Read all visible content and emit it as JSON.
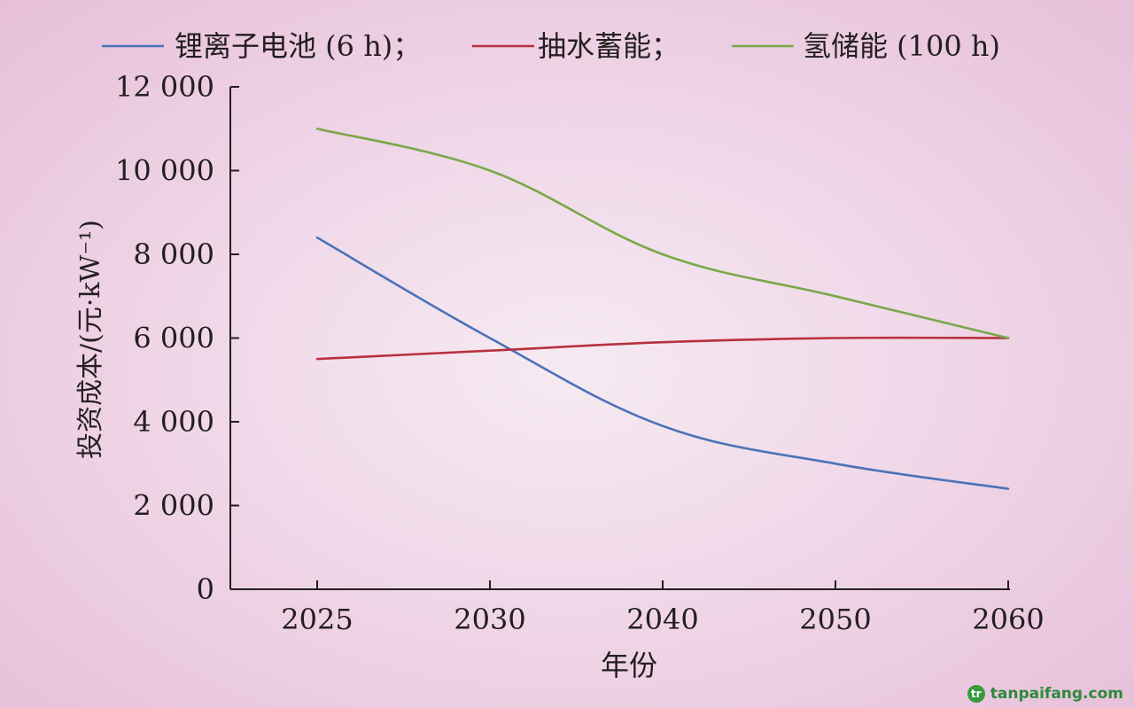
{
  "chart_data": {
    "type": "line",
    "xlabel": "年份",
    "ylabel": "投资成本/(元·kW⁻¹)",
    "categories": [
      "2025",
      "2030",
      "2040",
      "2050",
      "2060"
    ],
    "ylim": [
      0,
      12000
    ],
    "yticks": [
      {
        "value": 0,
        "label": "0"
      },
      {
        "value": 2000,
        "label": "2 000"
      },
      {
        "value": 4000,
        "label": "4 000"
      },
      {
        "value": 6000,
        "label": "6 000"
      },
      {
        "value": 8000,
        "label": "8 000"
      },
      {
        "value": 10000,
        "label": "10 000"
      },
      {
        "value": 12000,
        "label": "12 000"
      }
    ],
    "grid": false,
    "legend_position": "top",
    "series": [
      {
        "name": "锂离子电池 (6 h)；",
        "color": "#4a73b8",
        "values": [
          8400,
          6000,
          3900,
          3000,
          2400
        ]
      },
      {
        "name": "抽水蓄能；",
        "color": "#b8303f",
        "values": [
          5500,
          5700,
          5900,
          6000,
          6000
        ]
      },
      {
        "name": "氢储能 (100 h)",
        "color": "#7aa84a",
        "values": [
          11000,
          10000,
          8000,
          7000,
          6000
        ]
      }
    ]
  },
  "watermark": {
    "logo_text": "tr",
    "text": "tanpaifang.com"
  }
}
